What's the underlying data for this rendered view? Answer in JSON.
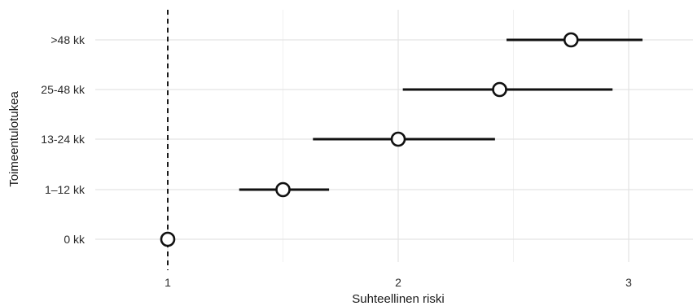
{
  "chart_data": {
    "type": "scatter",
    "subtype": "forest-plot",
    "xlabel": "Suhteellinen riski",
    "ylabel": "Toimeentulotukea",
    "xlim": [
      0.5,
      3.25
    ],
    "x_ticks": [
      1,
      2,
      3
    ],
    "x_minor_ticks": [
      1.5,
      2.5
    ],
    "reference_line": 1,
    "grid": true,
    "legend": "none",
    "categories": [
      "0 kk",
      "1–12 kk",
      "13-24 kk",
      "25-48 kk",
      ">48 kk"
    ],
    "points": [
      {
        "label": "0 kk",
        "estimate": 1.0,
        "lower": 1.0,
        "upper": 1.0
      },
      {
        "label": "1–12 kk",
        "estimate": 1.5,
        "lower": 1.31,
        "upper": 1.7
      },
      {
        "label": "13-24 kk",
        "estimate": 2.0,
        "lower": 1.63,
        "upper": 2.42
      },
      {
        "label": "25-48 kk",
        "estimate": 2.44,
        "lower": 2.02,
        "upper": 2.93
      },
      {
        "label": ">48 kk",
        "estimate": 2.75,
        "lower": 2.47,
        "upper": 3.06
      }
    ]
  }
}
